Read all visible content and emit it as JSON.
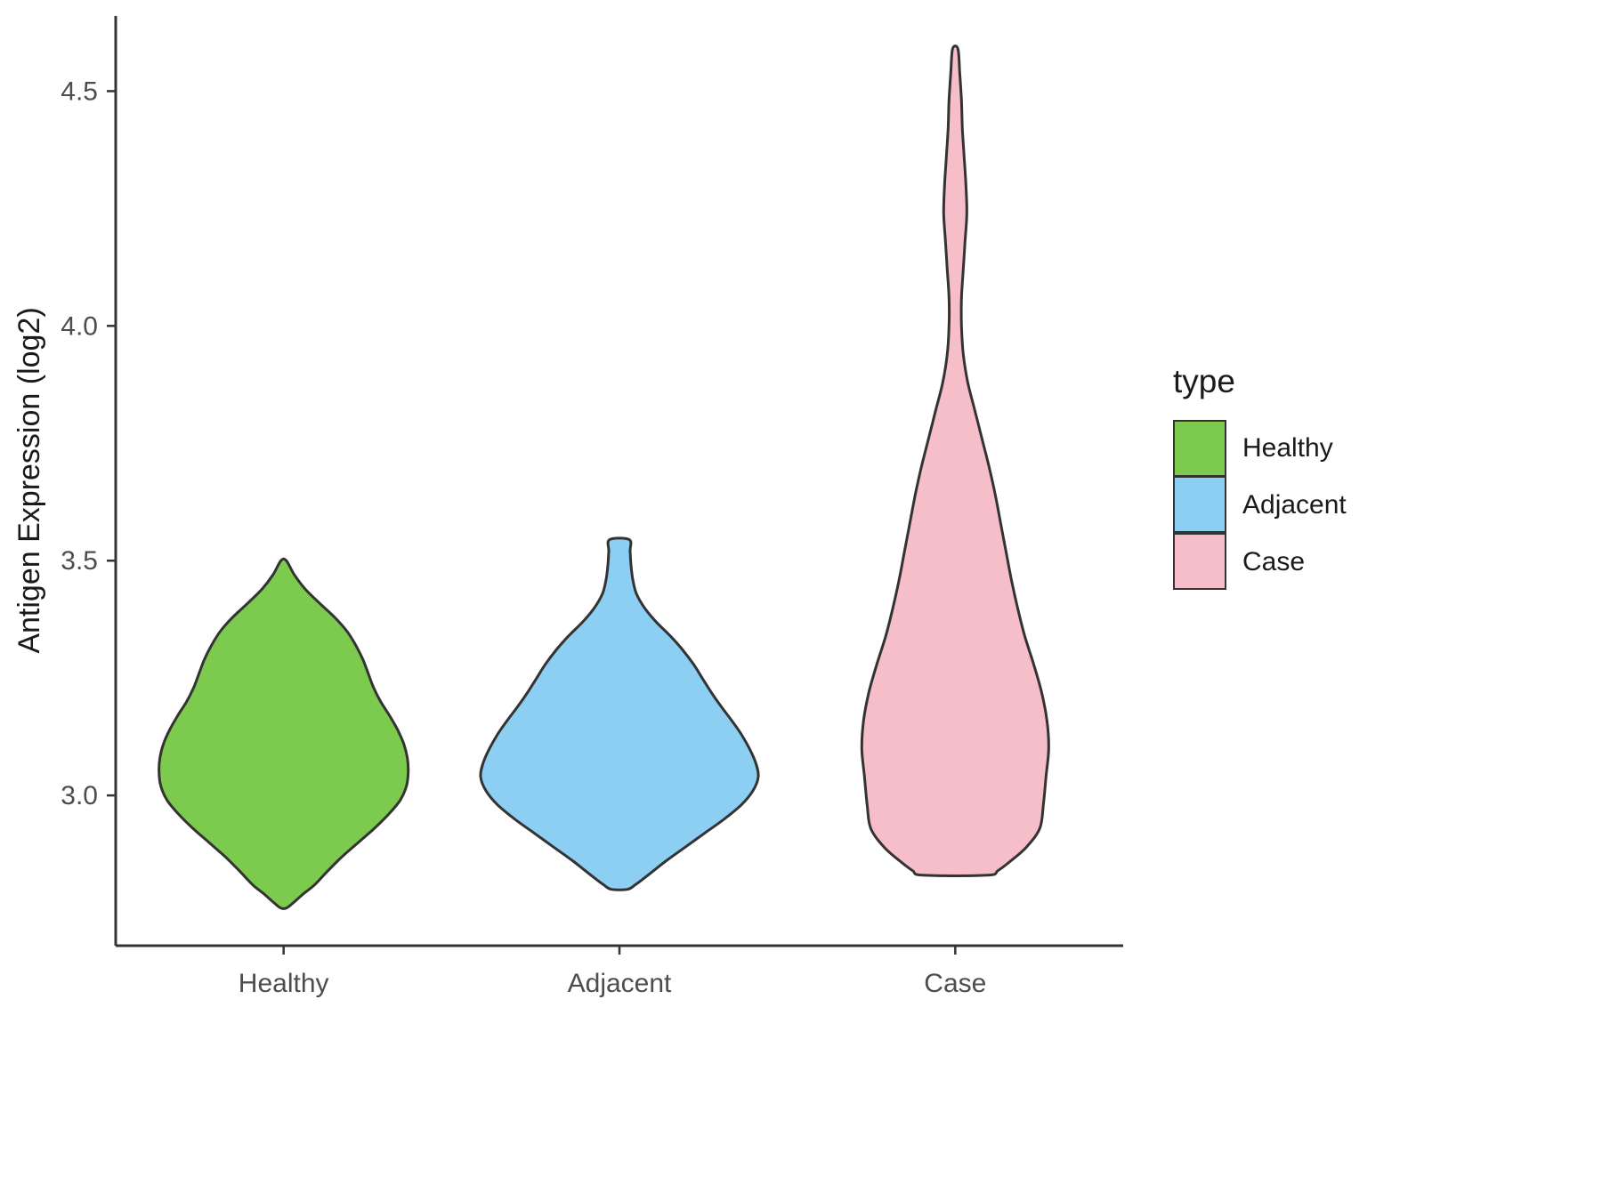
{
  "chart_data": {
    "type": "violin",
    "title": "",
    "xlabel": "",
    "ylabel": "Antigen Expression (log2)",
    "categories": [
      "Healthy",
      "Adjacent",
      "Case"
    ],
    "yticks": [
      3.0,
      3.5,
      4.0,
      4.5
    ],
    "ytick_labels": [
      "3.0",
      "3.5",
      "4.0",
      "4.5"
    ],
    "ylim": [
      2.68,
      4.66
    ],
    "grid": false,
    "axis_color": "#333333",
    "outline_color": "#333333",
    "tick_label_color": "#4d4d4d",
    "legend": {
      "title": "type",
      "position": "right",
      "entries": [
        {
          "label": "Healthy",
          "color": "#7CCB4E"
        },
        {
          "label": "Adjacent",
          "color": "#8DCFF2"
        },
        {
          "label": "Case",
          "color": "#F5BEC9"
        }
      ]
    },
    "series": [
      {
        "name": "Healthy",
        "color": "#7CCB4E",
        "profile": [
          [
            3.5,
            3
          ],
          [
            3.47,
            12
          ],
          [
            3.44,
            24
          ],
          [
            3.41,
            40
          ],
          [
            3.38,
            57
          ],
          [
            3.35,
            71
          ],
          [
            3.32,
            81
          ],
          [
            3.29,
            89
          ],
          [
            3.26,
            95
          ],
          [
            3.23,
            101
          ],
          [
            3.2,
            109
          ],
          [
            3.17,
            119
          ],
          [
            3.14,
            128
          ],
          [
            3.11,
            135
          ],
          [
            3.08,
            139
          ],
          [
            3.05,
            140
          ],
          [
            3.02,
            138
          ],
          [
            2.99,
            131
          ],
          [
            2.96,
            118
          ],
          [
            2.93,
            102
          ],
          [
            2.9,
            84
          ],
          [
            2.87,
            66
          ],
          [
            2.84,
            50
          ],
          [
            2.81,
            35
          ],
          [
            2.79,
            22
          ],
          [
            2.77,
            10
          ],
          [
            2.76,
            3
          ]
        ]
      },
      {
        "name": "Adjacent",
        "color": "#8DCFF2",
        "profile": [
          [
            3.545,
            11
          ],
          [
            3.52,
            12
          ],
          [
            3.49,
            13
          ],
          [
            3.46,
            15
          ],
          [
            3.43,
            19
          ],
          [
            3.4,
            28
          ],
          [
            3.37,
            41
          ],
          [
            3.34,
            57
          ],
          [
            3.31,
            71
          ],
          [
            3.28,
            83
          ],
          [
            3.25,
            93
          ],
          [
            3.22,
            103
          ],
          [
            3.19,
            114
          ],
          [
            3.16,
            126
          ],
          [
            3.13,
            137
          ],
          [
            3.1,
            146
          ],
          [
            3.07,
            153
          ],
          [
            3.04,
            156
          ],
          [
            3.01,
            150
          ],
          [
            2.98,
            137
          ],
          [
            2.95,
            118
          ],
          [
            2.92,
            96
          ],
          [
            2.89,
            74
          ],
          [
            2.86,
            52
          ],
          [
            2.83,
            32
          ],
          [
            2.81,
            18
          ],
          [
            2.8,
            9
          ]
        ]
      },
      {
        "name": "Case",
        "color": "#F5BEC9",
        "profile": [
          [
            4.59,
            3
          ],
          [
            4.54,
            5
          ],
          [
            4.48,
            7
          ],
          [
            4.42,
            8
          ],
          [
            4.36,
            10
          ],
          [
            4.3,
            12
          ],
          [
            4.24,
            13
          ],
          [
            4.18,
            11
          ],
          [
            4.12,
            9
          ],
          [
            4.06,
            7
          ],
          [
            4.0,
            7
          ],
          [
            3.94,
            9
          ],
          [
            3.88,
            14
          ],
          [
            3.82,
            22
          ],
          [
            3.76,
            30
          ],
          [
            3.7,
            38
          ],
          [
            3.64,
            45
          ],
          [
            3.58,
            51
          ],
          [
            3.52,
            57
          ],
          [
            3.46,
            63
          ],
          [
            3.4,
            70
          ],
          [
            3.34,
            78
          ],
          [
            3.28,
            88
          ],
          [
            3.22,
            97
          ],
          [
            3.16,
            103
          ],
          [
            3.1,
            105
          ],
          [
            3.04,
            102
          ],
          [
            2.98,
            99
          ],
          [
            2.93,
            95
          ],
          [
            2.89,
            80
          ],
          [
            2.86,
            62
          ],
          [
            2.84,
            48
          ],
          [
            2.83,
            36
          ]
        ]
      }
    ]
  }
}
